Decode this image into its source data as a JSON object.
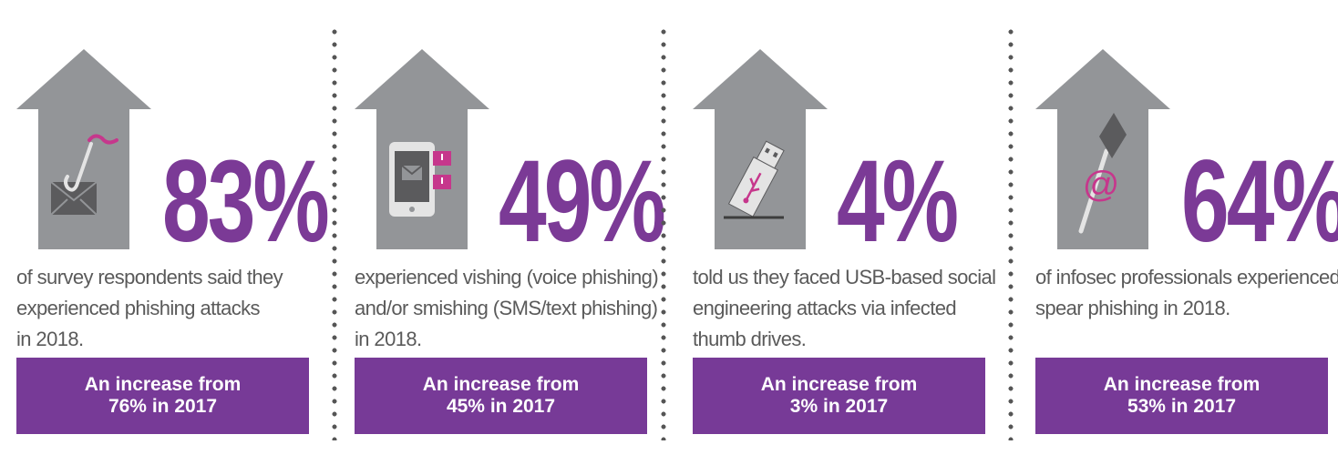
{
  "colors": {
    "accent": "#773a97",
    "arrow": "#939598",
    "icon": "#5b5b5d",
    "pink": "#c6378c",
    "text": "#5a5a5a"
  },
  "panels": [
    {
      "percent": "83%",
      "icon": "phishing-hook-envelope-icon",
      "description": [
        "of survey respondents said they",
        "experienced phishing attacks",
        "in 2018."
      ],
      "increase": [
        "An increase from",
        "76% in 2017"
      ]
    },
    {
      "percent": "49%",
      "icon": "phone-message-alert-icon",
      "description": [
        "experienced vishing (voice phishing)",
        "and/or smishing (SMS/text phishing)",
        "in 2018."
      ],
      "increase": [
        "An increase from",
        "45% in 2017"
      ]
    },
    {
      "percent": "4%",
      "icon": "usb-drive-icon",
      "description": [
        "told us they faced USB-based social",
        "engineering attacks via infected",
        "thumb drives."
      ],
      "increase": [
        "An increase from",
        "3% in 2017"
      ]
    },
    {
      "percent": "64%",
      "icon": "spear-at-sign-icon",
      "description": [
        "of infosec professionals experienced",
        "spear phishing in 2018."
      ],
      "increase": [
        "An increase from",
        "53% in 2017"
      ]
    }
  ]
}
